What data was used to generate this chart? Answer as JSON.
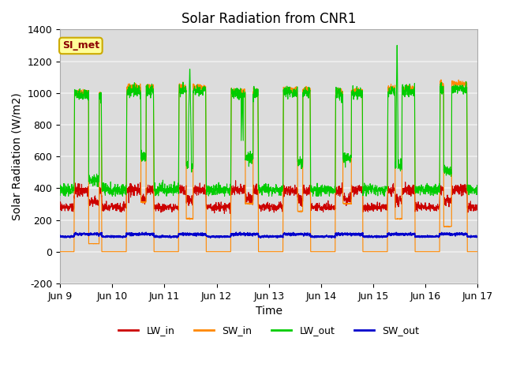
{
  "title": "Solar Radiation from CNR1",
  "xlabel": "Time",
  "ylabel": "Solar Radiation (W/m2)",
  "ylim": [
    -200,
    1400
  ],
  "yticks": [
    -200,
    0,
    200,
    400,
    600,
    800,
    1000,
    1200,
    1400
  ],
  "x_tick_labels": [
    "Jun 9",
    "Jun 10",
    "Jun 11",
    "Jun 12",
    "Jun 13",
    "Jun 14",
    "Jun 15",
    "Jun 16",
    "Jun 17"
  ],
  "x_tick_positions": [
    0,
    1,
    2,
    3,
    4,
    5,
    6,
    7,
    8
  ],
  "legend_labels": [
    "LW_in",
    "SW_in",
    "LW_out",
    "SW_out"
  ],
  "legend_colors": [
    "#cc0000",
    "#ff8800",
    "#00cc00",
    "#0000cc"
  ],
  "annotation_text": "SI_met",
  "annotation_bg": "#ffff99",
  "annotation_border": "#ccaa00",
  "bg_color": "#dcdcdc",
  "grid_color": "#f0f0f0",
  "title_fontsize": 12,
  "label_fontsize": 10
}
